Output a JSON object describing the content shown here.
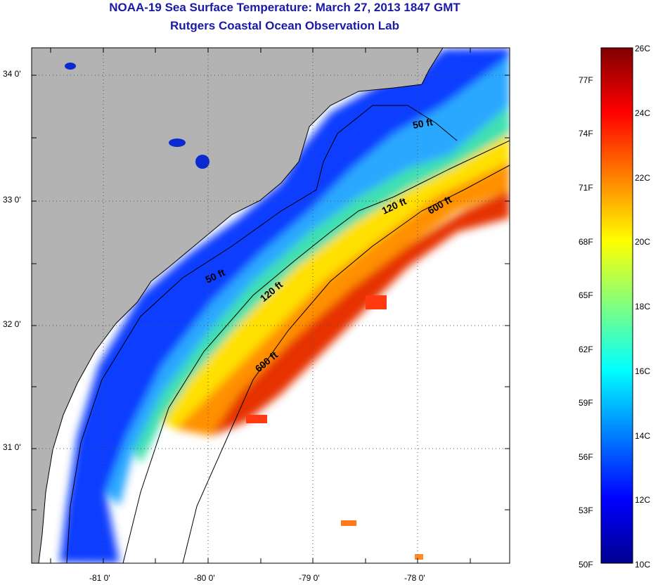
{
  "header": {
    "title": "NOAA-19 Sea Surface Temperature:  March 27, 2013 1847 GMT",
    "subtitle": "Rutgers Coastal Ocean Observation Lab"
  },
  "map": {
    "lat_labels": [
      "34 0'",
      "33 0'",
      "32 0'",
      "31 0'"
    ],
    "lon_labels": [
      "-81 0'",
      "-80 0'",
      "-79 0'",
      "-78 0'"
    ],
    "contour_labels": [
      {
        "text": "50 ft",
        "contour": "50 ft"
      },
      {
        "text": "50 ft",
        "contour": "50 ft"
      },
      {
        "text": "120 ft",
        "contour": "120 ft"
      },
      {
        "text": "120 ft",
        "contour": "120 ft"
      },
      {
        "text": "600 ft",
        "contour": "600 ft"
      },
      {
        "text": "600 ft",
        "contour": "600 ft"
      }
    ],
    "land_color": "#b3b3b3",
    "no_data_color": "#ffffff"
  },
  "colorbar": {
    "fahrenheit_labels": [
      "77F",
      "74F",
      "71F",
      "68F",
      "65F",
      "62F",
      "59F",
      "56F",
      "53F",
      "50F"
    ],
    "celsius_labels": [
      "26C",
      "24C",
      "22C",
      "20C",
      "18C",
      "16C",
      "14C",
      "12C",
      "10C"
    ],
    "range_celsius": [
      10,
      26
    ],
    "colormap": "jet"
  }
}
